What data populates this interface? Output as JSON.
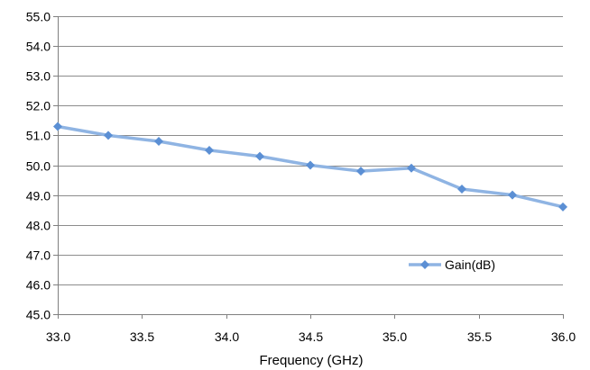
{
  "chart_data": {
    "type": "line",
    "xlabel": "Frequency (GHz)",
    "ylabel": "",
    "title": "",
    "xlim": [
      33.0,
      36.0
    ],
    "ylim": [
      45.0,
      55.0
    ],
    "x_ticks": [
      "33.0",
      "33.5",
      "34.0",
      "34.5",
      "35.0",
      "35.5",
      "36.0"
    ],
    "y_ticks": [
      "45.0",
      "46.0",
      "47.0",
      "48.0",
      "49.0",
      "50.0",
      "51.0",
      "52.0",
      "53.0",
      "54.0",
      "55.0"
    ],
    "grid": "horizontal",
    "legend_position": "bottom-right",
    "series": [
      {
        "name": "Gain(dB)",
        "color": "#8fb4e3",
        "marker_color": "#5b8fd4",
        "marker": "diamond",
        "x": [
          33.0,
          33.3,
          33.6,
          33.9,
          34.2,
          34.5,
          34.8,
          35.1,
          35.4,
          35.7,
          36.0
        ],
        "y": [
          51.3,
          51.0,
          50.8,
          50.5,
          50.3,
          50.0,
          49.8,
          49.9,
          49.2,
          49.0,
          48.6
        ]
      }
    ]
  }
}
